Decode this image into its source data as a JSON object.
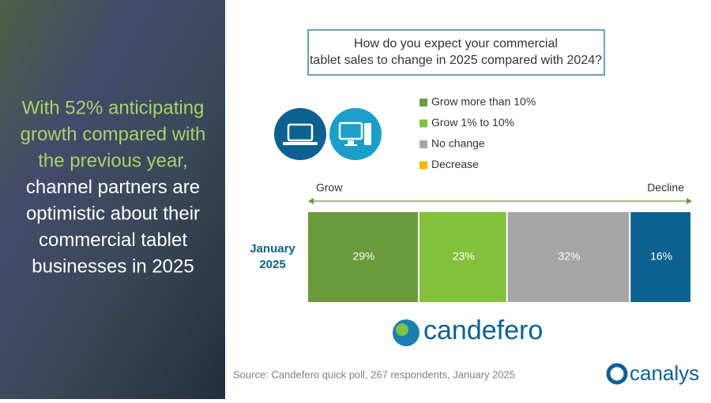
{
  "sidebar": {
    "highlight_lines": [
      "With 52% anticipating",
      "growth compared with",
      "the previous year,"
    ],
    "lines": [
      "channel partners are",
      "optimistic about their",
      "commercial tablet",
      "businesses in 2025"
    ]
  },
  "chart_data": {
    "type": "stacked_bar_horizontal",
    "title": "How do you expect your commercial tablet sales to change in 2025 compared with 2024?",
    "categories": [
      "January 2025"
    ],
    "series": [
      {
        "name": "Grow more than 10%",
        "color": "#6b9a3a",
        "values": [
          29
        ],
        "value_labels": [
          "29%"
        ]
      },
      {
        "name": "Grow 1% to 10%",
        "color": "#84c13b",
        "values": [
          23
        ],
        "value_labels": [
          "23%"
        ]
      },
      {
        "name": "No change",
        "color": "#a6a6a6",
        "values": [
          32
        ],
        "value_labels": [
          "32%"
        ]
      },
      {
        "name": "Decrease",
        "color": "#0d6191",
        "legend_color": "#f5b700",
        "values": [
          16
        ],
        "value_labels": [
          "16%"
        ]
      }
    ],
    "xlim": [
      0,
      100
    ],
    "axis_start_label": "Grow",
    "axis_end_label": "Decline"
  },
  "logo": "candefero",
  "source": "Source: Candefero quick poll, 267 respondents, January 2025",
  "brand": "canalys"
}
